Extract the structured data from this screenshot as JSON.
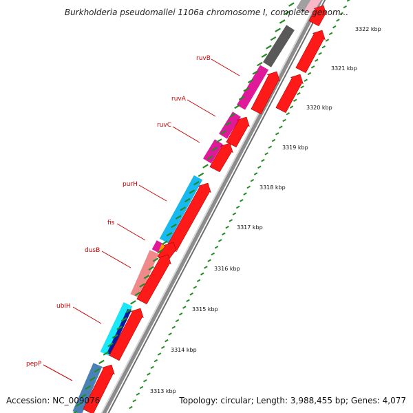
{
  "title": "Burkholderia pseudomallei 1106a chromosome I, complete genom...",
  "accession": "Accession: NC_009076",
  "summary": "Topology: circular; Length: 3,988,455 bp; Genes: 4,077",
  "kbp_ticks": [
    "3313 kbp",
    "3314 kbp",
    "3315 kbp",
    "3316 kbp",
    "3317 kbp",
    "3318 kbp",
    "3319 kbp",
    "3320 kbp",
    "3321 kbp",
    "3322 kbp"
  ],
  "gene_labels": [
    "pepP",
    "ubiH",
    "dusB",
    "fis",
    "purH",
    "ruvC",
    "ruvA",
    "ruvB"
  ],
  "colors": {
    "label": "#cc0000",
    "cds_red": "#ff1a1a",
    "tick_green": "#228b22",
    "ruv_magenta": "#e0189a",
    "purH_cyan": "#18b8f0",
    "dusB_pink": "#f08a8a",
    "ubiH_blue": "#0a1aa0",
    "pepP_steel": "#4a82b8",
    "gray": "#555555"
  }
}
